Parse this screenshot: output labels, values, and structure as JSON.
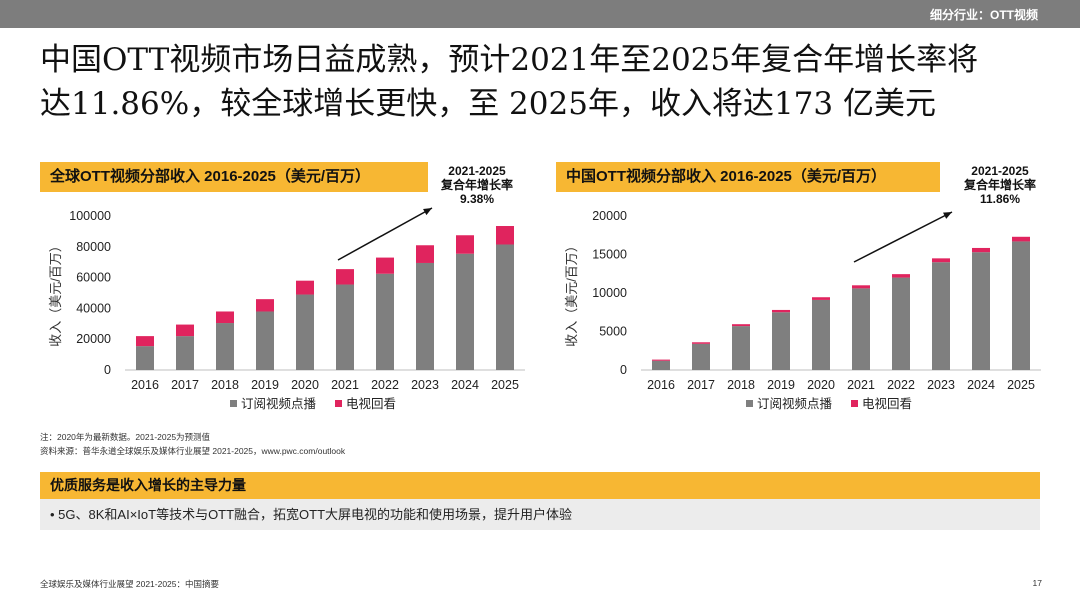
{
  "header": {
    "section": "细分行业：OTT视频"
  },
  "headline": {
    "line1": "中国OTT视频市场日益成熟，预计2021年至2025年复合年增长率将",
    "line2": "达11.86%，较全球增长更快，至 2025年，收入将达173 亿美元"
  },
  "colors": {
    "accent": "#f7b733",
    "svod": "#7f7f7f",
    "tvod": "#e0245e",
    "arrow": "#111111"
  },
  "chart_data": [
    {
      "type": "bar",
      "stacked": true,
      "title": "全球OTT视频分部收入 2016-2025（美元/百万）",
      "annotation": {
        "line1": "2021-2025",
        "line2": "复合年增长率",
        "line3": "9.38%"
      },
      "ylabel": "收入（美元/百万）",
      "ylim": [
        0,
        100000
      ],
      "yticks": [
        "0",
        "20000",
        "40000",
        "60000",
        "80000",
        "100000"
      ],
      "categories": [
        "2016",
        "2017",
        "2018",
        "2019",
        "2020",
        "2021",
        "2022",
        "2023",
        "2024",
        "2025"
      ],
      "series": [
        {
          "name": "订阅视频点播",
          "values": [
            15500,
            22000,
            30500,
            38000,
            49000,
            55500,
            62500,
            69500,
            75500,
            81500
          ]
        },
        {
          "name": "电视回看",
          "values": [
            6500,
            7500,
            7500,
            8000,
            9000,
            10000,
            10500,
            11500,
            12000,
            12000
          ]
        }
      ],
      "legend": "bottom",
      "grid": false
    },
    {
      "type": "bar",
      "stacked": true,
      "title": "中国OTT视频分部收入 2016-2025（美元/百万）",
      "annotation": {
        "line1": "2021-2025",
        "line2": "复合年增长率",
        "line3": "11.86%"
      },
      "ylabel": "收入（美元/百万）",
      "ylim": [
        0,
        20000
      ],
      "yticks": [
        "0",
        "5000",
        "10000",
        "15000",
        "20000"
      ],
      "categories": [
        "2016",
        "2017",
        "2018",
        "2019",
        "2020",
        "2021",
        "2022",
        "2023",
        "2024",
        "2025"
      ],
      "series": [
        {
          "name": "订阅视频点播",
          "values": [
            1200,
            3400,
            5700,
            7500,
            9100,
            10600,
            12000,
            14000,
            15300,
            16700
          ]
        },
        {
          "name": "电视回看",
          "values": [
            150,
            200,
            250,
            300,
            350,
            400,
            450,
            500,
            550,
            600
          ]
        }
      ],
      "legend": "bottom",
      "grid": false
    }
  ],
  "notes": {
    "line1": "注：2020年为最新数据。2021-2025为预测值",
    "line2": "资料来源：普华永道全球娱乐及媒体行业展望 2021-2025，www.pwc.com/outlook"
  },
  "drivers": {
    "title": "优质服务是收入增长的主导力量",
    "bullet": "•  5G、8K和AI×IoT等技术与OTT融合，拓宽OTT大屏电视的功能和使用场景，提升用户体验"
  },
  "footer": {
    "text": "全球娱乐及媒体行业展望 2021-2025：中国摘要",
    "page": "17"
  }
}
